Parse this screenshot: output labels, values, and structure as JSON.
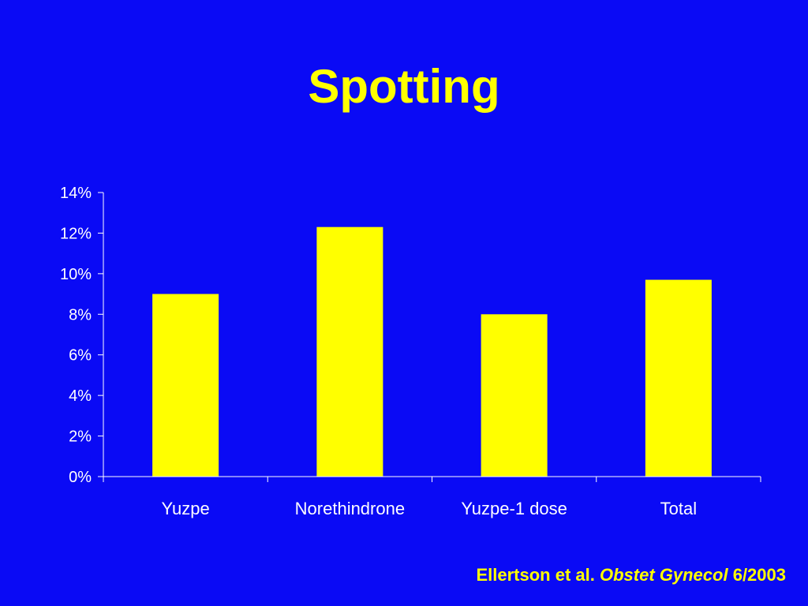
{
  "slide": {
    "background_color": "#0A0AF5",
    "accent_color": "#FFFF00",
    "title": "Spotting"
  },
  "citation": {
    "authors": "Ellertson et al.",
    "journal": "Obstet Gynecol",
    "date": "6/2003"
  },
  "chart_data": {
    "type": "bar",
    "title": "",
    "xlabel": "",
    "ylabel": "",
    "categories": [
      "Yuzpe",
      "Norethindrone",
      "Yuzpe-1 dose",
      "Total"
    ],
    "values": [
      9.0,
      12.3,
      8.0,
      9.7
    ],
    "value_unit": "%",
    "ylim": [
      0,
      14
    ],
    "y_ticks": [
      0,
      2,
      4,
      6,
      8,
      10,
      12,
      14
    ],
    "y_tick_labels": [
      "0%",
      "2%",
      "4%",
      "6%",
      "8%",
      "10%",
      "12%",
      "14%"
    ],
    "bar_color": "#FFFF00",
    "axis_color": "#FFFFFF",
    "grid": false,
    "legend": "none"
  }
}
